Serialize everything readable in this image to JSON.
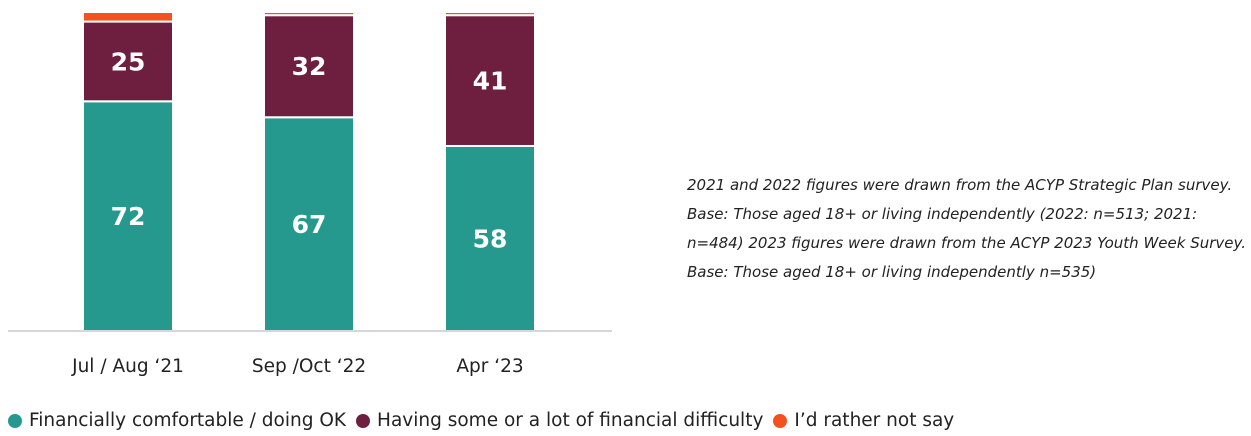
{
  "chart_data": {
    "type": "bar",
    "stacked": true,
    "orientation": "vertical",
    "categories": [
      "Jul / Aug ‘21",
      "Sep /Oct ‘22",
      "Apr ‘23"
    ],
    "series": [
      {
        "name": "Financially comfortable / doing OK",
        "values": [
          72,
          67,
          58
        ],
        "color": "#26998e"
      },
      {
        "name": "Having some or a lot of financial difficulty",
        "values": [
          25,
          32,
          41
        ],
        "color": "#6e1f3f"
      },
      {
        "name": "I’d rather not say",
        "values": [
          3,
          1,
          1
        ],
        "color": "#f4511e"
      }
    ],
    "data_labels": {
      "series_shown": [
        0,
        1
      ]
    },
    "ylim": [
      0,
      100
    ],
    "grid": false,
    "legend": "bottom"
  },
  "note": "2021 and 2022 figures were drawn from the ACYP Strategic Plan survey. Base: Those aged 18+ or living independently (2022: n=513; 2021: n=484) 2023 figures were drawn from the ACYP 2023 Youth Week Survey. Base: Those aged 18+ or living independently n=535)"
}
